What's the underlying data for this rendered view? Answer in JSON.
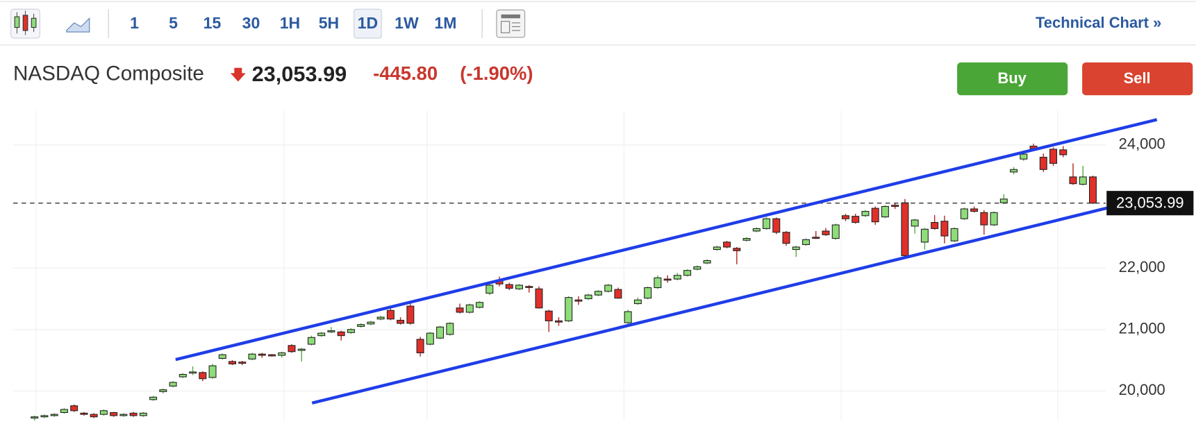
{
  "toolbar": {
    "intervals": [
      "1",
      "5",
      "15",
      "30",
      "1H",
      "5H",
      "1D",
      "1W",
      "1M"
    ],
    "active_interval": 6,
    "link": "Technical Chart »"
  },
  "header": {
    "name": "NASDAQ Composite",
    "price": "23,053.99",
    "change": "-445.80",
    "change_pct": "(-1.90%)"
  },
  "buttons": {
    "buy": "Buy",
    "sell": "Sell"
  },
  "chart_data": {
    "type": "candlestick",
    "series": {
      "open": [
        19560,
        19580,
        19600,
        19650,
        19760,
        19640,
        19620,
        19620,
        19650,
        19600,
        19640,
        19600,
        19860,
        19990,
        20080,
        20230,
        20300,
        20300,
        20220,
        20530,
        20480,
        20470,
        20520,
        20600,
        20590,
        20580,
        20740,
        20660,
        20760,
        20900,
        20960,
        20960,
        20950,
        21050,
        21090,
        21170,
        21310,
        21150,
        21380,
        20840,
        20760,
        20860,
        20920,
        21350,
        21280,
        21360,
        21590,
        21800,
        21730,
        21660,
        21700,
        21660,
        21300,
        21140,
        21140,
        21480,
        21500,
        21560,
        21620,
        21650,
        21110,
        21420,
        21510,
        21680,
        21820,
        21820,
        21880,
        21980,
        22080,
        22300,
        22420,
        22320,
        22450,
        22600,
        22640,
        22800,
        22580,
        22300,
        22380,
        22500,
        22600,
        22480,
        22850,
        22840,
        22850,
        22970,
        22830,
        23020,
        23060,
        22680,
        22420,
        22740,
        22760,
        22440,
        22800,
        22960,
        22900,
        22700,
        23060,
        23560,
        23770,
        23980,
        23800,
        23930,
        23920,
        23480,
        23360,
        23480
      ],
      "high": [
        19600,
        19620,
        19640,
        19720,
        19780,
        19660,
        19640,
        19700,
        19660,
        19640,
        19660,
        19660,
        19920,
        20040,
        20160,
        20290,
        20400,
        20320,
        20440,
        20610,
        20500,
        20490,
        20620,
        20620,
        20600,
        20640,
        20760,
        20700,
        20900,
        20960,
        21040,
        20980,
        21020,
        21100,
        21140,
        21220,
        21340,
        21200,
        21420,
        20880,
        20960,
        21060,
        21120,
        21420,
        21420,
        21460,
        21740,
        21860,
        21760,
        21740,
        21720,
        21700,
        21320,
        21200,
        21540,
        21540,
        21580,
        21640,
        21740,
        21680,
        21320,
        21520,
        21700,
        21880,
        21880,
        21920,
        21980,
        22040,
        22140,
        22360,
        22440,
        22340,
        22500,
        22660,
        22830,
        22820,
        22600,
        22360,
        22480,
        22600,
        22650,
        22720,
        22880,
        22880,
        22940,
        23000,
        23020,
        23060,
        23120,
        22800,
        22650,
        22860,
        22850,
        22660,
        22980,
        23000,
        22940,
        22920,
        23200,
        23640,
        23880,
        24020,
        23860,
        23960,
        23980,
        23700,
        23660,
        23500
      ],
      "low": [
        19520,
        19560,
        19580,
        19630,
        19660,
        19600,
        19560,
        19600,
        19580,
        19580,
        19580,
        19580,
        19840,
        19960,
        20060,
        20210,
        20260,
        20160,
        20200,
        20510,
        20420,
        20420,
        20500,
        20540,
        20560,
        20540,
        20620,
        20480,
        20740,
        20880,
        20940,
        20820,
        20930,
        21030,
        21070,
        21150,
        21150,
        21080,
        21080,
        20560,
        20740,
        20840,
        20900,
        21260,
        21260,
        21340,
        21560,
        21700,
        21640,
        21640,
        21600,
        21340,
        20960,
        21060,
        21120,
        21400,
        21480,
        21540,
        21600,
        21500,
        21090,
        21400,
        21490,
        21660,
        21760,
        21800,
        21860,
        21960,
        22060,
        22280,
        22320,
        22060,
        22430,
        22580,
        22620,
        22550,
        22360,
        22180,
        22360,
        22470,
        22520,
        22460,
        22760,
        22720,
        22830,
        22700,
        22810,
        22960,
        22150,
        22560,
        22300,
        22620,
        22400,
        22420,
        22780,
        22900,
        22540,
        22680,
        23040,
        23520,
        23740,
        23900,
        23560,
        23660,
        23800,
        23350,
        23340,
        23040
      ],
      "close": [
        19580,
        19600,
        19620,
        19700,
        19680,
        19620,
        19580,
        19680,
        19600,
        19620,
        19600,
        19640,
        19900,
        20020,
        20140,
        20270,
        20310,
        20200,
        20410,
        20590,
        20440,
        20450,
        20600,
        20580,
        20570,
        20620,
        20640,
        20680,
        20870,
        20940,
        20980,
        20900,
        21000,
        21080,
        21120,
        21200,
        21170,
        21100,
        21100,
        20620,
        20940,
        21040,
        21100,
        21280,
        21400,
        21440,
        21720,
        21740,
        21670,
        21720,
        21690,
        21350,
        21140,
        21120,
        21520,
        21460,
        21560,
        21620,
        21720,
        21510,
        21290,
        21480,
        21680,
        21840,
        21810,
        21880,
        21960,
        22020,
        22120,
        22340,
        22340,
        22280,
        22480,
        22640,
        22800,
        22580,
        22400,
        22340,
        22460,
        22490,
        22540,
        22700,
        22800,
        22740,
        22920,
        22750,
        23000,
        23000,
        22200,
        22780,
        22630,
        22640,
        22520,
        22640,
        22960,
        22920,
        22700,
        22900,
        23120,
        23600,
        23850,
        23940,
        23600,
        23700,
        23840,
        23370,
        23480,
        23054
      ]
    },
    "up_color": "#8fdc7a",
    "down_color": "#e0302a",
    "ylim": [
      19520,
      24560
    ],
    "yticks": [
      {
        "value": 20000,
        "label": "20,000"
      },
      {
        "value": 21000,
        "label": "21,000"
      },
      {
        "value": 22000,
        "label": "22,000"
      },
      {
        "value": 24000,
        "label": "24,000"
      }
    ],
    "last_price": {
      "value": 23053.99,
      "label": "23,053.99"
    },
    "grid": true
  }
}
